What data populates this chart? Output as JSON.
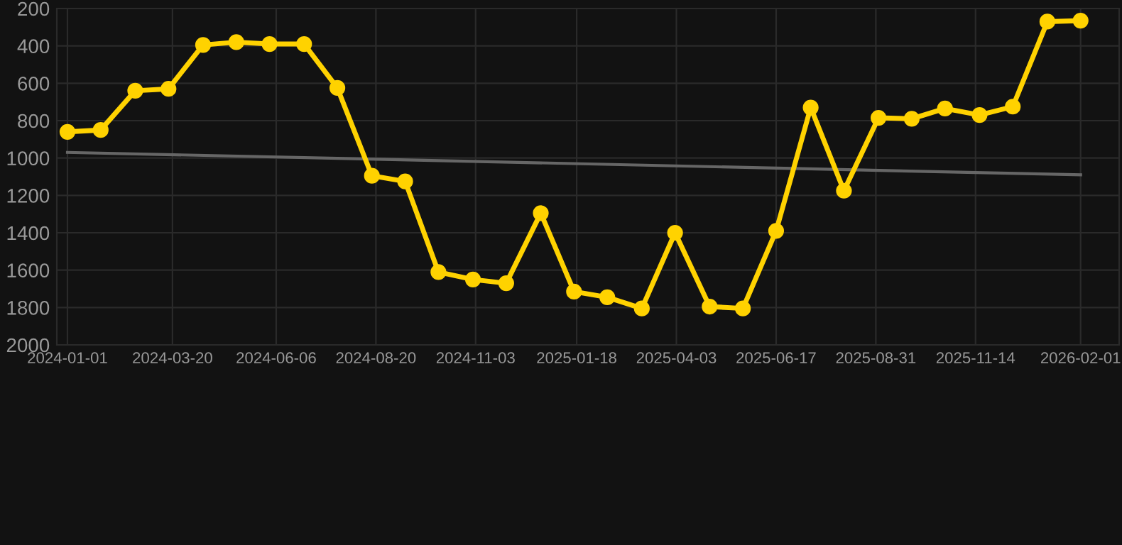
{
  "chart_data": {
    "type": "line",
    "xlim": [
      "2023-12-24",
      "2026-03-02"
    ],
    "ylim": [
      2000,
      200
    ],
    "xticks": [
      "2024-01-01",
      "2024-03-20",
      "2024-06-06",
      "2024-08-20",
      "2024-11-03",
      "2025-01-18",
      "2025-04-03",
      "2025-06-17",
      "2025-08-31",
      "2025-11-14",
      "2026-02-01"
    ],
    "yticks": [
      200,
      400,
      600,
      800,
      1000,
      1200,
      1400,
      1600,
      1800,
      2000
    ],
    "grid": true,
    "legend": false,
    "series": [
      {
        "color": "#ffd200",
        "marker": "circle",
        "line_style": "solid",
        "x": [
          "2024-01-01",
          "2024-01-26",
          "2024-02-21",
          "2024-03-17",
          "2024-04-12",
          "2024-05-07",
          "2024-06-01",
          "2024-06-27",
          "2024-07-22",
          "2024-08-17",
          "2024-09-11",
          "2024-10-06",
          "2024-11-01",
          "2024-11-26",
          "2024-12-22",
          "2025-01-16",
          "2025-02-10",
          "2025-03-08",
          "2025-04-02",
          "2025-04-28",
          "2025-05-23",
          "2025-06-17",
          "2025-07-13",
          "2025-08-07",
          "2025-09-02",
          "2025-09-27",
          "2025-10-22",
          "2025-11-17",
          "2025-12-12",
          "2026-01-07",
          "2026-02-01"
        ],
        "values": [
          860,
          850,
          640,
          630,
          395,
          380,
          390,
          390,
          625,
          1095,
          1125,
          1610,
          1650,
          1670,
          1295,
          1715,
          1745,
          1805,
          1400,
          1795,
          1805,
          1390,
          730,
          1175,
          785,
          790,
          735,
          770,
          725,
          270,
          265
        ]
      },
      {
        "type": "line",
        "color": "#666666",
        "marker": "none",
        "line_style": "solid",
        "x": [
          "2024-01-01",
          "2026-02-01"
        ],
        "values": [
          970,
          1090
        ]
      }
    ]
  }
}
